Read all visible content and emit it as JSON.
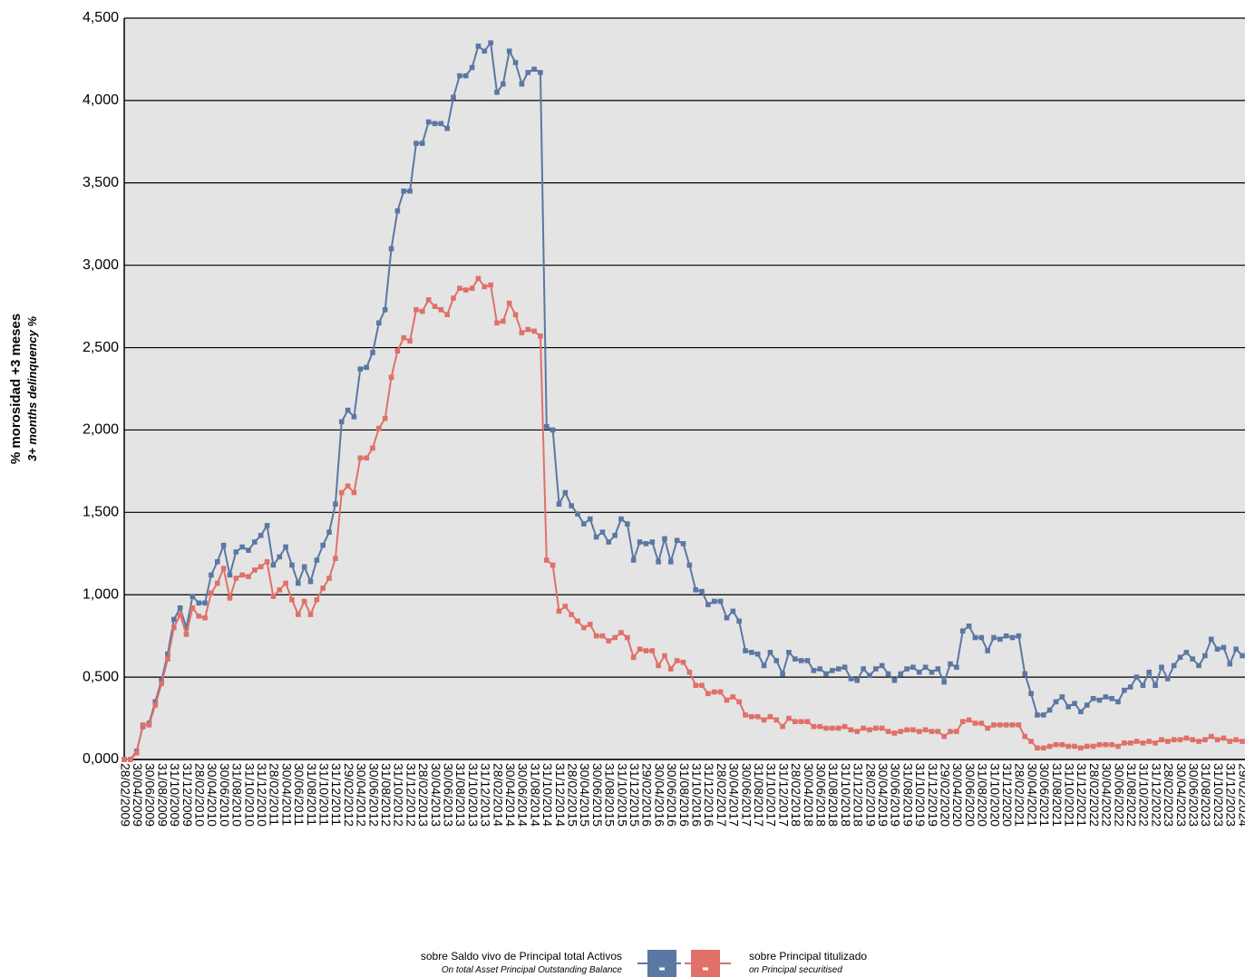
{
  "chart_data": {
    "type": "line",
    "ylabel": "% morosidad +3 meses",
    "ylabel_sub": "3+ months delinquency %",
    "ylim": [
      0,
      4.5
    ],
    "yticks": [
      {
        "value": 0,
        "label": "0,000"
      },
      {
        "value": 0.5,
        "label": "0,500"
      },
      {
        "value": 1,
        "label": "1,000"
      },
      {
        "value": 1.5,
        "label": "1,500"
      },
      {
        "value": 2,
        "label": "2,000"
      },
      {
        "value": 2.5,
        "label": "2,500"
      },
      {
        "value": 3,
        "label": "3,000"
      },
      {
        "value": 3.5,
        "label": "3,500"
      },
      {
        "value": 4,
        "label": "4,000"
      },
      {
        "value": 4.5,
        "label": "4,500"
      }
    ],
    "grid": true,
    "categories": [
      "28/02/2009",
      null,
      "30/04/2009",
      null,
      "30/06/2009",
      null,
      "31/08/2009",
      null,
      "31/10/2009",
      null,
      "31/12/2009",
      null,
      "28/02/2010",
      null,
      "30/04/2010",
      null,
      "30/06/2010",
      null,
      "31/08/2010",
      null,
      "31/10/2010",
      null,
      "31/12/2010",
      null,
      "28/02/2011",
      null,
      "30/04/2011",
      null,
      "30/06/2011",
      null,
      "31/08/2011",
      null,
      "31/10/2011",
      null,
      "31/12/2011",
      null,
      "29/02/2012",
      null,
      "30/04/2012",
      null,
      "30/06/2012",
      null,
      "31/08/2012",
      null,
      "31/10/2012",
      null,
      "31/12/2012",
      null,
      "28/02/2013",
      null,
      "30/04/2013",
      null,
      "30/06/2013",
      null,
      "31/08/2013",
      null,
      "31/10/2013",
      null,
      "31/12/2013",
      null,
      "28/02/2014",
      null,
      "30/04/2014",
      null,
      "30/06/2014",
      null,
      "31/08/2014",
      null,
      "31/10/2014",
      null,
      "31/12/2014",
      null,
      "28/02/2015",
      null,
      "30/04/2015",
      null,
      "30/06/2015",
      null,
      "31/08/2015",
      null,
      "31/10/2015",
      null,
      "31/12/2015",
      null,
      "29/02/2016",
      null,
      "30/04/2016",
      null,
      "30/06/2016",
      null,
      "31/08/2016",
      null,
      "31/10/2016",
      null,
      "31/12/2016",
      null,
      "28/02/2017",
      null,
      "30/04/2017",
      null,
      "30/06/2017",
      null,
      "31/08/2017",
      null,
      "31/10/2017",
      null,
      "31/12/2017",
      null,
      "28/02/2018",
      null,
      "30/04/2018",
      null,
      "30/06/2018",
      null,
      "31/08/2018",
      null,
      "31/10/2018",
      null,
      "31/12/2018",
      null,
      "28/02/2019",
      null,
      "30/04/2019",
      null,
      "30/06/2019",
      null,
      "31/08/2019",
      null,
      "31/10/2019",
      null,
      "31/12/2019",
      null,
      "29/02/2020",
      null,
      "30/04/2020",
      null,
      "30/06/2020",
      null,
      "31/08/2020",
      null,
      "31/10/2020",
      null,
      "31/12/2020",
      null,
      "28/02/2021",
      null,
      "30/04/2021",
      null,
      "30/06/2021",
      null,
      "31/08/2021",
      null,
      "31/10/2021",
      null,
      "31/12/2021",
      null,
      "28/02/2022",
      null,
      "30/04/2022",
      null,
      "30/06/2022",
      null,
      "31/08/2022",
      null,
      "31/10/2022",
      null,
      "31/12/2022",
      null,
      "28/02/2023",
      null,
      "30/04/2023",
      null,
      "30/06/2023",
      null,
      "31/08/2023",
      null,
      "31/10/2023",
      null,
      "31/12/2023",
      null,
      "29/02/2024"
    ],
    "series": [
      {
        "name": "sobre Saldo vivo de Principal total Activos",
        "subname": "On total Asset Principal Outstanding Balance",
        "color": "#5b77a3",
        "values": [
          0.0,
          0.0,
          0.05,
          0.2,
          0.22,
          0.35,
          0.48,
          0.64,
          0.85,
          0.92,
          0.8,
          0.99,
          0.95,
          0.95,
          1.12,
          1.2,
          1.3,
          1.12,
          1.26,
          1.29,
          1.27,
          1.32,
          1.36,
          1.42,
          1.18,
          1.23,
          1.29,
          1.18,
          1.07,
          1.17,
          1.08,
          1.21,
          1.3,
          1.38,
          1.55,
          2.05,
          2.12,
          2.08,
          2.37,
          2.38,
          2.47,
          2.65,
          2.73,
          3.1,
          3.33,
          3.45,
          3.45,
          3.74,
          3.74,
          3.87,
          3.86,
          3.86,
          3.83,
          4.02,
          4.15,
          4.15,
          4.2,
          4.33,
          4.3,
          4.35,
          4.05,
          4.1,
          4.3,
          4.23,
          4.1,
          4.17,
          4.19,
          4.17,
          2.02,
          2.0,
          1.55,
          1.62,
          1.54,
          1.49,
          1.43,
          1.46,
          1.35,
          1.38,
          1.32,
          1.36,
          1.46,
          1.43,
          1.21,
          1.32,
          1.31,
          1.32,
          1.2,
          1.34,
          1.2,
          1.33,
          1.31,
          1.18,
          1.03,
          1.02,
          0.94,
          0.96,
          0.96,
          0.86,
          0.9,
          0.84,
          0.66,
          0.65,
          0.64,
          0.57,
          0.65,
          0.6,
          0.52,
          0.65,
          0.61,
          0.6,
          0.6,
          0.54,
          0.55,
          0.52,
          0.54,
          0.55,
          0.56,
          0.49,
          0.48,
          0.55,
          0.51,
          0.55,
          0.57,
          0.52,
          0.48,
          0.52,
          0.55,
          0.56,
          0.53,
          0.56,
          0.53,
          0.55,
          0.47,
          0.58,
          0.56,
          0.78,
          0.81,
          0.74,
          0.74,
          0.66,
          0.74,
          0.73,
          0.75,
          0.74,
          0.75,
          0.52,
          0.4,
          0.27,
          0.27,
          0.3,
          0.35,
          0.38,
          0.32,
          0.34,
          0.29,
          0.33,
          0.37,
          0.36,
          0.38,
          0.37,
          0.35,
          0.42,
          0.44,
          0.5,
          0.45,
          0.53,
          0.45,
          0.56,
          0.49,
          0.57,
          0.62,
          0.65,
          0.61,
          0.57,
          0.63,
          0.73,
          0.67,
          0.68,
          0.58,
          0.67,
          0.63
        ]
      },
      {
        "name": "sobre Principal titulizado",
        "subname": "on Principal securitised",
        "color": "#e07068",
        "values": [
          0.0,
          0.0,
          0.04,
          0.21,
          0.21,
          0.33,
          0.46,
          0.61,
          0.8,
          0.88,
          0.76,
          0.92,
          0.87,
          0.86,
          1.01,
          1.07,
          1.16,
          0.98,
          1.1,
          1.12,
          1.11,
          1.15,
          1.17,
          1.2,
          0.99,
          1.03,
          1.07,
          0.97,
          0.88,
          0.96,
          0.88,
          0.97,
          1.04,
          1.1,
          1.22,
          1.62,
          1.66,
          1.62,
          1.83,
          1.83,
          1.89,
          2.01,
          2.07,
          2.32,
          2.48,
          2.56,
          2.54,
          2.73,
          2.72,
          2.79,
          2.75,
          2.73,
          2.7,
          2.8,
          2.86,
          2.85,
          2.86,
          2.92,
          2.87,
          2.88,
          2.65,
          2.66,
          2.77,
          2.7,
          2.59,
          2.61,
          2.6,
          2.57,
          1.21,
          1.18,
          0.9,
          0.93,
          0.88,
          0.84,
          0.8,
          0.82,
          0.75,
          0.75,
          0.72,
          0.74,
          0.77,
          0.74,
          0.62,
          0.67,
          0.66,
          0.66,
          0.57,
          0.63,
          0.55,
          0.6,
          0.59,
          0.53,
          0.45,
          0.45,
          0.4,
          0.41,
          0.41,
          0.36,
          0.38,
          0.35,
          0.27,
          0.26,
          0.26,
          0.24,
          0.26,
          0.24,
          0.2,
          0.25,
          0.23,
          0.23,
          0.23,
          0.2,
          0.2,
          0.19,
          0.19,
          0.19,
          0.2,
          0.18,
          0.17,
          0.19,
          0.18,
          0.19,
          0.19,
          0.17,
          0.16,
          0.17,
          0.18,
          0.18,
          0.17,
          0.18,
          0.17,
          0.17,
          0.14,
          0.17,
          0.17,
          0.23,
          0.24,
          0.22,
          0.22,
          0.19,
          0.21,
          0.21,
          0.21,
          0.21,
          0.21,
          0.14,
          0.11,
          0.07,
          0.07,
          0.08,
          0.09,
          0.09,
          0.08,
          0.08,
          0.07,
          0.08,
          0.08,
          0.09,
          0.09,
          0.09,
          0.08,
          0.1,
          0.1,
          0.11,
          0.1,
          0.11,
          0.1,
          0.12,
          0.11,
          0.12,
          0.12,
          0.13,
          0.12,
          0.11,
          0.12,
          0.14,
          0.12,
          0.13,
          0.11,
          0.12,
          0.11
        ]
      }
    ]
  }
}
